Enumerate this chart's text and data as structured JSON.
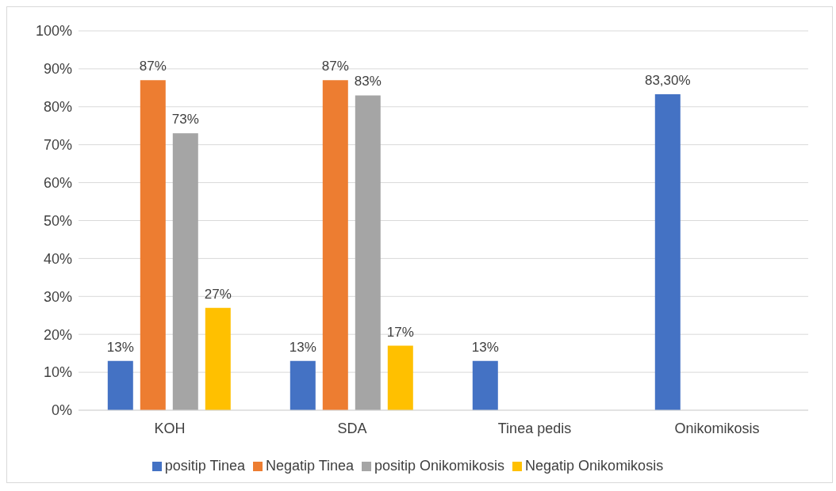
{
  "chart_data": {
    "type": "bar",
    "categories": [
      "KOH",
      "SDA",
      "Tinea pedis",
      "Onikomikosis"
    ],
    "series": [
      {
        "name": "positip Tinea",
        "color": "#4472c4",
        "values": [
          13,
          13,
          13,
          83.3
        ],
        "value_labels": [
          "13%",
          "13%",
          "13%",
          "83,30%"
        ]
      },
      {
        "name": "Negatip Tinea",
        "color": "#ed7d31",
        "values": [
          87,
          87,
          null,
          null
        ],
        "value_labels": [
          "87%",
          "87%",
          null,
          null
        ]
      },
      {
        "name": "positip Onikomikosis",
        "color": "#a5a5a5",
        "values": [
          73,
          83,
          null,
          null
        ],
        "value_labels": [
          "73%",
          "83%",
          null,
          null
        ]
      },
      {
        "name": "Negatip Onikomikosis",
        "color": "#ffc000",
        "values": [
          27,
          17,
          null,
          null
        ],
        "value_labels": [
          "27%",
          "17%",
          null,
          null
        ]
      }
    ],
    "ylim": [
      0,
      100
    ],
    "yticks": [
      {
        "value": 0,
        "label": "0%"
      },
      {
        "value": 10,
        "label": "10%"
      },
      {
        "value": 20,
        "label": "20%"
      },
      {
        "value": 30,
        "label": "30%"
      },
      {
        "value": 40,
        "label": "40%"
      },
      {
        "value": 50,
        "label": "50%"
      },
      {
        "value": 60,
        "label": "60%"
      },
      {
        "value": 70,
        "label": "70%"
      },
      {
        "value": 80,
        "label": "80%"
      },
      {
        "value": 90,
        "label": "90%"
      },
      {
        "value": 100,
        "label": "100%"
      }
    ],
    "grid": "y",
    "legend": "bottom"
  }
}
